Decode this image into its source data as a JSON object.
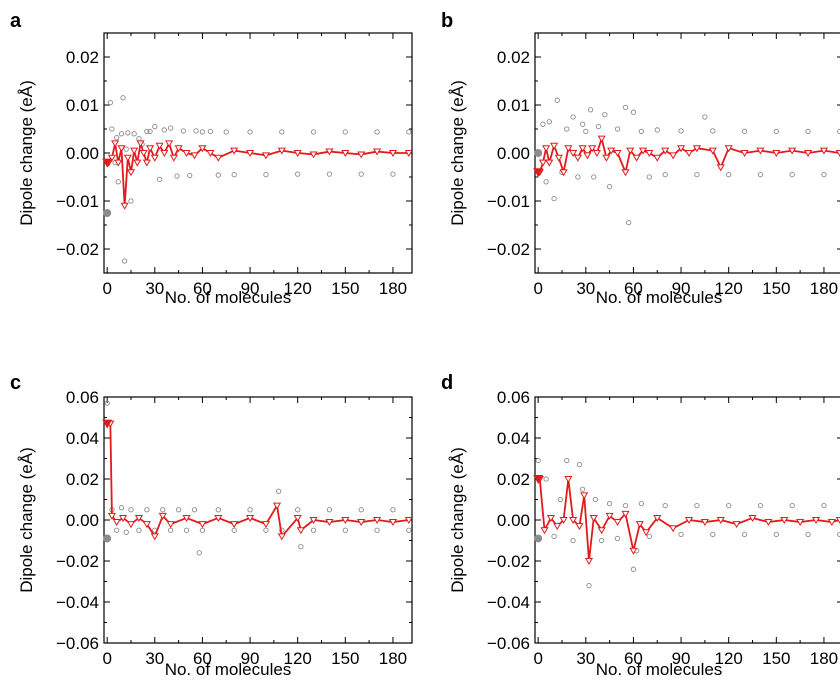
{
  "chart_data": [
    {
      "panel": "a",
      "type": "scatter",
      "xlabel": "No. of molecules",
      "ylabel": "Dipole change (eÅ)",
      "xlim": [
        -2,
        192
      ],
      "ylim": [
        -0.025,
        0.025
      ],
      "xticks": [
        0,
        30,
        60,
        90,
        120,
        150,
        180
      ],
      "yticks": [
        -0.02,
        -0.01,
        0.0,
        0.01,
        0.02
      ],
      "ytick_labels": [
        "−0.02",
        "−0.01",
        "0.00",
        "0.01",
        "0.02"
      ],
      "grid": false,
      "series": [
        {
          "style": "grey-open-circles",
          "color": "#8c8c8c",
          "x": [
            2,
            3,
            5,
            6,
            7,
            9,
            10,
            11,
            12,
            13,
            15,
            17,
            20,
            22,
            25,
            27,
            30,
            33,
            36,
            40,
            44,
            48,
            52,
            56,
            60,
            65,
            70,
            75,
            80,
            90,
            100,
            110,
            120,
            130,
            140,
            150,
            160,
            170,
            180,
            190
          ],
          "y": [
            0.0105,
            0.005,
            -0.002,
            0.0032,
            -0.006,
            0.004,
            0.0115,
            -0.0225,
            0.0008,
            0.0042,
            -0.01,
            0.004,
            0.003,
            0.0018,
            0.0045,
            0.0045,
            0.0055,
            -0.0055,
            0.0048,
            0.0052,
            -0.0048,
            0.0046,
            -0.0047,
            0.0046,
            0.0044,
            0.0045,
            -0.0046,
            0.0044,
            -0.0045,
            0.0044,
            -0.0045,
            0.0044,
            -0.0044,
            0.0044,
            -0.0044,
            0.0044,
            -0.0044,
            0.0044,
            -0.0044,
            0.0044
          ]
        },
        {
          "style": "red-open-triangles-line",
          "color": "#e31a1c",
          "x": [
            1,
            3,
            5,
            7,
            9,
            11,
            13,
            15,
            17,
            19,
            21,
            23,
            25,
            27,
            30,
            33,
            36,
            39,
            42,
            45,
            50,
            55,
            60,
            65,
            70,
            80,
            90,
            100,
            110,
            120,
            130,
            140,
            150,
            160,
            170,
            180,
            190
          ],
          "y": [
            -0.002,
            -0.001,
            0.002,
            -0.002,
            0.001,
            -0.011,
            -0.001,
            -0.004,
            0.0005,
            -0.002,
            0.002,
            0.0,
            -0.002,
            0.001,
            -0.001,
            0.0015,
            0.0,
            0.002,
            -0.001,
            0.001,
            0.0,
            -0.0005,
            0.001,
            0.0,
            -0.001,
            0.0005,
            0.0,
            -0.0005,
            0.0005,
            0.0,
            -0.0003,
            0.0003,
            0.0,
            -0.0003,
            0.0003,
            0.0,
            0.0
          ]
        },
        {
          "style": "grey-filled-circle",
          "color": "#8c8c8c",
          "x": [
            0
          ],
          "y": [
            -0.0125
          ]
        },
        {
          "style": "red-filled-triangle",
          "color": "#e31a1c",
          "x": [
            0
          ],
          "y": [
            -0.002
          ]
        }
      ]
    },
    {
      "panel": "b",
      "type": "scatter",
      "xlabel": "No. of molecules",
      "ylabel": "Dipole change (eÅ)",
      "xlim": [
        -2,
        192
      ],
      "ylim": [
        -0.025,
        0.025
      ],
      "xticks": [
        0,
        30,
        60,
        90,
        120,
        150,
        180
      ],
      "yticks": [
        -0.02,
        -0.01,
        0.0,
        0.01,
        0.02
      ],
      "ytick_labels": [
        "−0.02",
        "−0.01",
        "0.00",
        "0.01",
        "0.02"
      ],
      "grid": false,
      "series": [
        {
          "style": "grey-open-circles",
          "color": "#8c8c8c",
          "x": [
            3,
            5,
            7,
            10,
            12,
            15,
            18,
            22,
            25,
            28,
            30,
            33,
            35,
            38,
            42,
            45,
            50,
            55,
            57,
            60,
            65,
            70,
            75,
            80,
            90,
            100,
            105,
            110,
            120,
            130,
            140,
            150,
            160,
            170,
            180,
            190
          ],
          "y": [
            0.006,
            -0.006,
            0.0065,
            -0.0095,
            0.011,
            -0.004,
            0.005,
            0.0075,
            -0.005,
            0.006,
            0.0045,
            0.009,
            -0.005,
            0.0055,
            0.008,
            -0.007,
            0.005,
            0.0095,
            -0.0145,
            0.0085,
            0.0045,
            -0.005,
            0.0048,
            -0.0045,
            0.0046,
            -0.0045,
            0.0075,
            0.0046,
            -0.0045,
            0.0045,
            -0.0045,
            0.0045,
            -0.0045,
            0.0045,
            -0.0045,
            0.0045
          ]
        },
        {
          "style": "red-open-triangles-line",
          "color": "#e31a1c",
          "x": [
            1,
            3,
            5,
            7,
            10,
            13,
            16,
            19,
            22,
            25,
            28,
            31,
            34,
            37,
            40,
            43,
            46,
            50,
            55,
            58,
            62,
            66,
            70,
            75,
            80,
            85,
            90,
            95,
            100,
            110,
            115,
            120,
            130,
            140,
            150,
            160,
            170,
            180,
            190
          ],
          "y": [
            -0.004,
            -0.002,
            0.001,
            -0.002,
            0.0015,
            -0.001,
            -0.004,
            0.001,
            0.0,
            -0.001,
            0.001,
            -0.0005,
            0.001,
            0.0,
            0.003,
            -0.001,
            0.0005,
            0.0,
            -0.004,
            0.0005,
            -0.001,
            0.0005,
            0.0,
            -0.001,
            0.0005,
            -0.0005,
            0.001,
            0.0,
            0.001,
            0.0005,
            -0.003,
            0.001,
            0.0,
            0.0005,
            0.0,
            0.0005,
            0.0,
            0.0005,
            0.0
          ]
        },
        {
          "style": "grey-filled-circle",
          "color": "#8c8c8c",
          "x": [
            0
          ],
          "y": [
            0.0
          ]
        },
        {
          "style": "red-filled-triangle",
          "color": "#e31a1c",
          "x": [
            0
          ],
          "y": [
            -0.004
          ]
        }
      ]
    },
    {
      "panel": "c",
      "type": "scatter",
      "xlabel": "No. of molecules",
      "ylabel": "Dipole change (eÅ)",
      "xlim": [
        -2,
        192
      ],
      "ylim": [
        -0.06,
        0.06
      ],
      "xticks": [
        0,
        30,
        60,
        90,
        120,
        150,
        180
      ],
      "yticks": [
        -0.06,
        -0.04,
        -0.02,
        0.0,
        0.02,
        0.04,
        0.06
      ],
      "ytick_labels": [
        "−0.06",
        "−0.04",
        "−0.02",
        "0.00",
        "0.02",
        "0.04",
        "0.06"
      ],
      "grid": false,
      "series": [
        {
          "style": "grey-open-circles",
          "color": "#8c8c8c",
          "x": [
            0,
            3,
            6,
            9,
            12,
            15,
            20,
            25,
            30,
            35,
            40,
            45,
            50,
            55,
            58,
            60,
            70,
            80,
            90,
            100,
            108,
            110,
            120,
            122,
            130,
            140,
            150,
            160,
            170,
            180,
            190
          ],
          "y": [
            0.057,
            0.005,
            -0.005,
            0.006,
            -0.006,
            0.005,
            -0.005,
            0.005,
            -0.005,
            0.005,
            -0.005,
            0.005,
            -0.005,
            0.005,
            -0.016,
            -0.005,
            0.005,
            -0.005,
            0.005,
            -0.005,
            0.014,
            -0.005,
            0.005,
            -0.013,
            -0.005,
            0.005,
            -0.005,
            0.005,
            -0.005,
            0.005,
            -0.005
          ]
        },
        {
          "style": "red-open-triangles-line",
          "color": "#e31a1c",
          "x": [
            2,
            3,
            6,
            10,
            15,
            20,
            25,
            30,
            35,
            40,
            50,
            60,
            70,
            80,
            90,
            100,
            107,
            110,
            120,
            122,
            130,
            140,
            150,
            160,
            170,
            180,
            190
          ],
          "y": [
            0.047,
            0.002,
            -0.001,
            0.001,
            -0.002,
            0.001,
            -0.002,
            -0.008,
            0.002,
            -0.002,
            0.001,
            -0.002,
            0.001,
            -0.002,
            0.001,
            -0.002,
            0.007,
            -0.008,
            0.001,
            -0.005,
            0.0,
            -0.001,
            0.0,
            -0.001,
            0.0,
            -0.001,
            0.0
          ]
        },
        {
          "style": "grey-filled-circle",
          "color": "#8c8c8c",
          "x": [
            0
          ],
          "y": [
            -0.009
          ]
        },
        {
          "style": "red-filled-triangle",
          "color": "#e31a1c",
          "x": [
            0
          ],
          "y": [
            0.047
          ]
        }
      ]
    },
    {
      "panel": "d",
      "type": "scatter",
      "xlabel": "No. of molecules",
      "ylabel": "Dipole change (eÅ)",
      "xlim": [
        -2,
        192
      ],
      "ylim": [
        -0.06,
        0.06
      ],
      "xticks": [
        0,
        30,
        60,
        90,
        120,
        150,
        180
      ],
      "yticks": [
        -0.06,
        -0.04,
        -0.02,
        0.0,
        0.02,
        0.04,
        0.06
      ],
      "ytick_labels": [
        "−0.06",
        "−0.04",
        "−0.02",
        "0.00",
        "0.02",
        "0.04",
        "0.06"
      ],
      "grid": false,
      "series": [
        {
          "style": "grey-open-circles",
          "color": "#8c8c8c",
          "x": [
            0,
            5,
            10,
            14,
            18,
            22,
            26,
            28,
            32,
            36,
            40,
            45,
            50,
            55,
            60,
            62,
            65,
            70,
            80,
            90,
            100,
            110,
            120,
            130,
            140,
            150,
            160,
            170,
            180,
            190
          ],
          "y": [
            0.029,
            0.02,
            -0.008,
            0.01,
            0.029,
            -0.01,
            0.027,
            0.015,
            -0.032,
            0.01,
            -0.01,
            0.008,
            -0.009,
            0.007,
            -0.024,
            -0.015,
            0.008,
            -0.008,
            0.007,
            -0.007,
            0.007,
            -0.007,
            0.007,
            -0.007,
            0.007,
            -0.007,
            0.007,
            -0.007,
            0.007,
            -0.007
          ]
        },
        {
          "style": "red-open-triangles-line",
          "color": "#e31a1c",
          "x": [
            1,
            4,
            8,
            12,
            16,
            19,
            22,
            26,
            29,
            32,
            35,
            40,
            45,
            50,
            55,
            60,
            64,
            68,
            75,
            85,
            95,
            105,
            115,
            125,
            135,
            145,
            155,
            165,
            175,
            185,
            190
          ],
          "y": [
            0.02,
            -0.005,
            0.001,
            -0.003,
            0.0,
            0.02,
            0.0,
            -0.003,
            0.012,
            -0.02,
            0.001,
            -0.005,
            0.002,
            -0.001,
            0.003,
            -0.015,
            -0.002,
            -0.006,
            0.001,
            -0.004,
            0.0,
            -0.001,
            0.0,
            -0.002,
            0.001,
            -0.001,
            0.0,
            -0.001,
            0.0,
            -0.001,
            0.0
          ]
        },
        {
          "style": "grey-filled-circle",
          "color": "#8c8c8c",
          "x": [
            0
          ],
          "y": [
            -0.009
          ]
        },
        {
          "style": "red-filled-triangle",
          "color": "#e31a1c",
          "x": [
            0
          ],
          "y": [
            0.02
          ]
        }
      ]
    }
  ]
}
